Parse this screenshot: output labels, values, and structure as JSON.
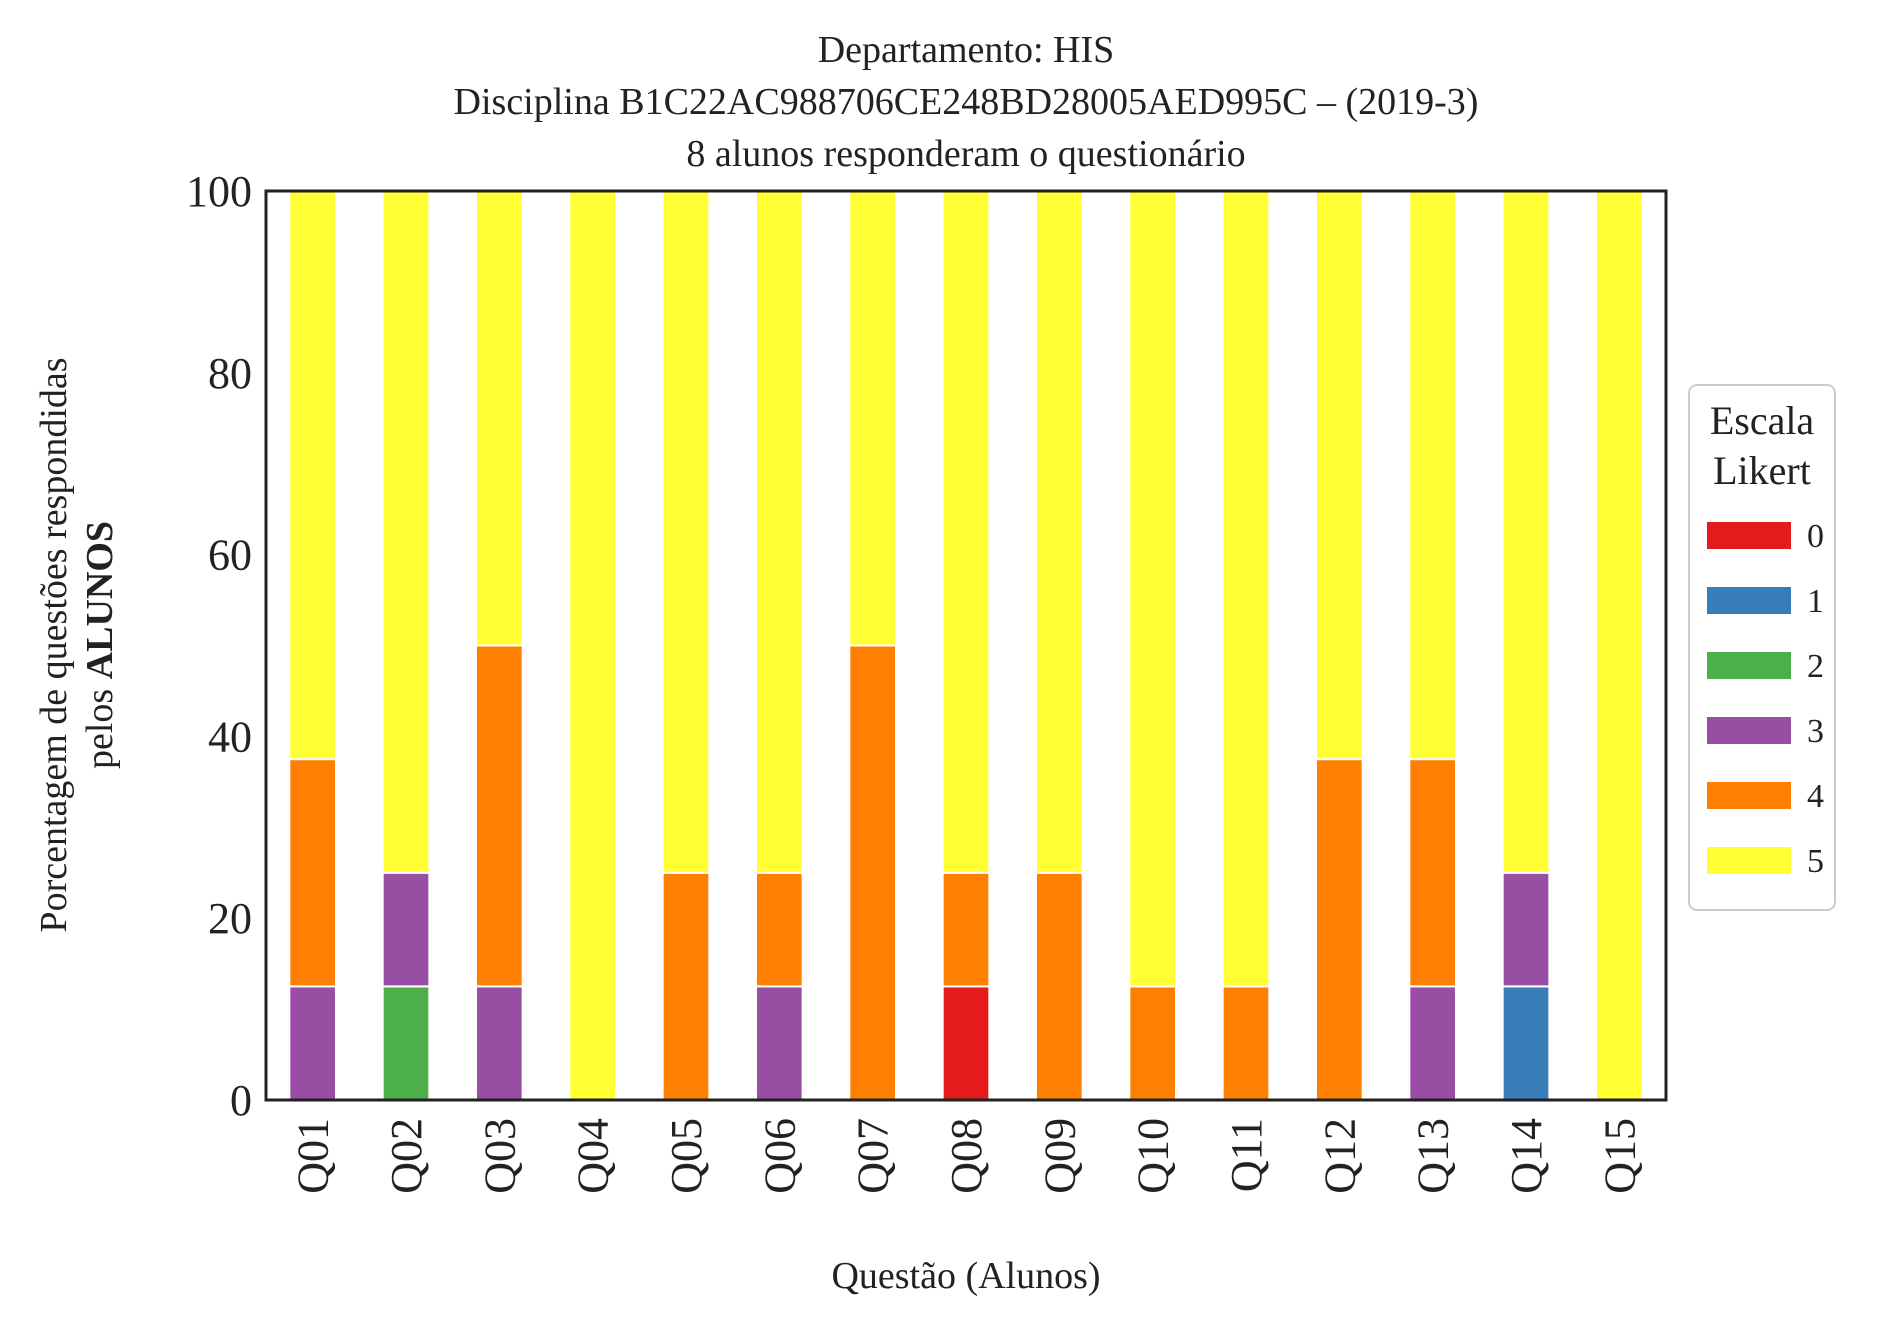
{
  "chart_data": {
    "type": "bar",
    "stacked": true,
    "title_lines": [
      "Departamento: HIS",
      "Disciplina B1C22AC988706CE248BD28005AED995C – (2019-3)",
      "8 alunos responderam o questionário"
    ],
    "xlabel": "Questão (Alunos)",
    "ylabel_line1": "Porcentagem de questões respondidas",
    "ylabel_line2_prefix": "pelos ",
    "ylabel_line2_bold": "ALUNOS",
    "ylim": [
      0,
      100
    ],
    "yticks": [
      "0",
      "20",
      "40",
      "60",
      "80",
      "100"
    ],
    "grid": false,
    "legend_placement": "right",
    "legend_title_lines": [
      "Escala",
      "Likert"
    ],
    "categories": [
      "Q01",
      "Q02",
      "Q03",
      "Q04",
      "Q05",
      "Q06",
      "Q07",
      "Q08",
      "Q09",
      "Q10",
      "Q11",
      "Q12",
      "Q13",
      "Q14",
      "Q15"
    ],
    "series": [
      {
        "name": "0",
        "color": "#e41a1c",
        "values": [
          0,
          0,
          0,
          0,
          0,
          0,
          0,
          12.5,
          0,
          0,
          0,
          0,
          0,
          0,
          0
        ]
      },
      {
        "name": "1",
        "color": "#377eb8",
        "values": [
          0,
          0,
          0,
          0,
          0,
          0,
          0,
          0,
          0,
          0,
          0,
          0,
          0,
          12.5,
          0
        ]
      },
      {
        "name": "2",
        "color": "#4daf4a",
        "values": [
          0,
          12.5,
          0,
          0,
          0,
          0,
          0,
          0,
          0,
          0,
          0,
          0,
          0,
          0,
          0
        ]
      },
      {
        "name": "3",
        "color": "#984ea3",
        "values": [
          12.5,
          12.5,
          12.5,
          0,
          0,
          12.5,
          0,
          0,
          0,
          0,
          0,
          0,
          12.5,
          12.5,
          0
        ]
      },
      {
        "name": "4",
        "color": "#ff7f00",
        "values": [
          25,
          0,
          37.5,
          0,
          25,
          12.5,
          50,
          12.5,
          25,
          12.5,
          12.5,
          37.5,
          25,
          0,
          0
        ]
      },
      {
        "name": "5",
        "color": "#ffff33",
        "values": [
          62.5,
          75,
          50,
          100,
          75,
          75,
          50,
          75,
          75,
          87.5,
          87.5,
          62.5,
          62.5,
          75,
          100
        ]
      }
    ]
  }
}
